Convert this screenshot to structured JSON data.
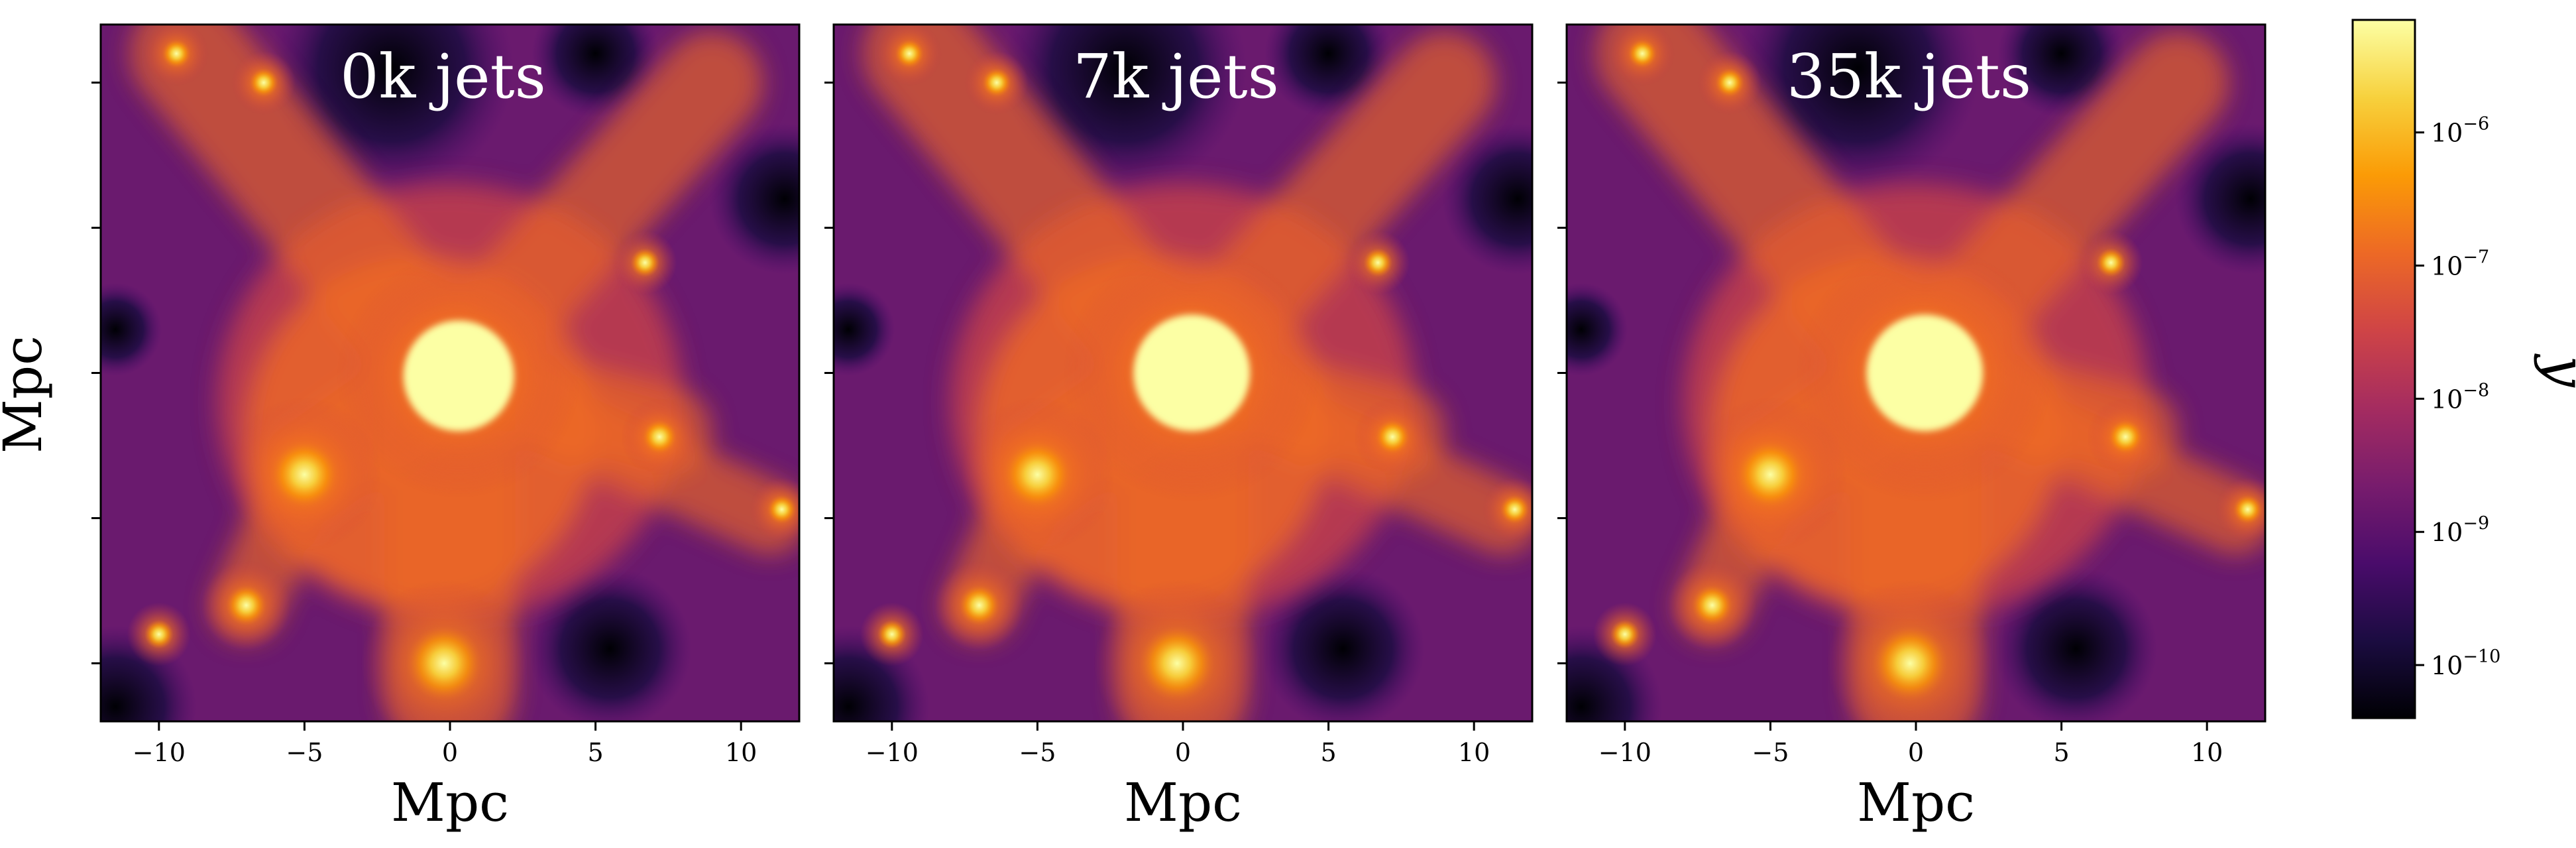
{
  "chart_data": [
    {
      "type": "heatmap",
      "title": "0k jets",
      "xlabel": "Mpc",
      "ylabel": "Mpc",
      "xlim": [
        -12,
        12
      ],
      "ylim": [
        -12,
        12
      ],
      "xticks": [
        -10,
        -5,
        0,
        5,
        10
      ],
      "xtick_labels": [
        "−10",
        "−5",
        "0",
        "5",
        "10"
      ],
      "yticks": [
        -10,
        -5,
        0,
        5,
        10
      ],
      "yticks_labeled": false,
      "colormap": "inferno",
      "log_scale": true,
      "features": [
        {
          "kind": "cluster",
          "x": 0.3,
          "y": -0.1,
          "r": 1.9
        },
        {
          "kind": "halo",
          "x": -5.0,
          "y": -3.5,
          "r": 1.2
        },
        {
          "kind": "halo",
          "x": -0.2,
          "y": -10.0,
          "r": 1.3
        },
        {
          "kind": "halo",
          "x": 7.2,
          "y": -2.2,
          "r": 0.6
        },
        {
          "kind": "halo",
          "x": 11.4,
          "y": -4.7,
          "r": 0.5
        },
        {
          "kind": "halo",
          "x": -7.0,
          "y": -8.0,
          "r": 0.7
        },
        {
          "kind": "halo",
          "x": -10.0,
          "y": -9.0,
          "r": 0.5
        },
        {
          "kind": "halo",
          "x": -6.4,
          "y": 10.0,
          "r": 0.5
        },
        {
          "kind": "halo",
          "x": -9.4,
          "y": 11.0,
          "r": 0.5
        },
        {
          "kind": "halo",
          "x": 6.7,
          "y": 3.8,
          "r": 0.5
        }
      ]
    },
    {
      "type": "heatmap",
      "title": "7k jets",
      "xlabel": "Mpc",
      "ylabel": "",
      "xlim": [
        -12,
        12
      ],
      "ylim": [
        -12,
        12
      ],
      "xticks": [
        -10,
        -5,
        0,
        5,
        10
      ],
      "xtick_labels": [
        "−10",
        "−5",
        "0",
        "5",
        "10"
      ],
      "yticks": [
        -10,
        -5,
        0,
        5,
        10
      ],
      "yticks_labeled": false,
      "colormap": "inferno",
      "log_scale": true,
      "features": [
        {
          "kind": "cluster",
          "x": 0.3,
          "y": 0.0,
          "r": 2.0
        },
        {
          "kind": "halo",
          "x": -5.0,
          "y": -3.5,
          "r": 1.2
        },
        {
          "kind": "halo",
          "x": -0.2,
          "y": -10.0,
          "r": 1.3
        },
        {
          "kind": "halo",
          "x": 7.2,
          "y": -2.2,
          "r": 0.6
        },
        {
          "kind": "halo",
          "x": 11.4,
          "y": -4.7,
          "r": 0.5
        },
        {
          "kind": "halo",
          "x": -7.0,
          "y": -8.0,
          "r": 0.7
        },
        {
          "kind": "halo",
          "x": -10.0,
          "y": -9.0,
          "r": 0.5
        },
        {
          "kind": "halo",
          "x": -6.4,
          "y": 10.0,
          "r": 0.5
        },
        {
          "kind": "halo",
          "x": -9.4,
          "y": 11.0,
          "r": 0.5
        },
        {
          "kind": "halo",
          "x": 6.7,
          "y": 3.8,
          "r": 0.5
        }
      ]
    },
    {
      "type": "heatmap",
      "title": "35k jets",
      "xlabel": "Mpc",
      "ylabel": "",
      "xlim": [
        -12,
        12
      ],
      "ylim": [
        -12,
        12
      ],
      "xticks": [
        -10,
        -5,
        0,
        5,
        10
      ],
      "xtick_labels": [
        "−10",
        "−5",
        "0",
        "5",
        "10"
      ],
      "yticks": [
        -10,
        -5,
        0,
        5,
        10
      ],
      "yticks_labeled": false,
      "colormap": "inferno",
      "log_scale": true,
      "features": [
        {
          "kind": "cluster",
          "x": 0.3,
          "y": 0.0,
          "r": 2.0
        },
        {
          "kind": "halo",
          "x": -5.0,
          "y": -3.5,
          "r": 1.2
        },
        {
          "kind": "halo",
          "x": -0.2,
          "y": -10.0,
          "r": 1.3
        },
        {
          "kind": "halo",
          "x": 7.2,
          "y": -2.2,
          "r": 0.6
        },
        {
          "kind": "halo",
          "x": 11.4,
          "y": -4.7,
          "r": 0.5
        },
        {
          "kind": "halo",
          "x": -7.0,
          "y": -8.0,
          "r": 0.7
        },
        {
          "kind": "halo",
          "x": -10.0,
          "y": -9.0,
          "r": 0.5
        },
        {
          "kind": "halo",
          "x": -6.4,
          "y": 10.0,
          "r": 0.5
        },
        {
          "kind": "halo",
          "x": -9.4,
          "y": 11.0,
          "r": 0.5
        },
        {
          "kind": "halo",
          "x": 6.7,
          "y": 3.8,
          "r": 0.5
        }
      ]
    }
  ],
  "colorbar": {
    "label": "y",
    "scale": "log",
    "range": [
      4e-11,
      7e-06
    ],
    "ticks": [
      {
        "value": 1e-10,
        "base": "10",
        "exp": "−10"
      },
      {
        "value": 1e-09,
        "base": "10",
        "exp": "−9"
      },
      {
        "value": 1e-08,
        "base": "10",
        "exp": "−8"
      },
      {
        "value": 1e-07,
        "base": "10",
        "exp": "−7"
      },
      {
        "value": 1e-06,
        "base": "10",
        "exp": "−6"
      }
    ],
    "colors": [
      "#000004",
      "#1b0c41",
      "#4a0c6b",
      "#781c6d",
      "#a52c60",
      "#cf4446",
      "#ed6925",
      "#fb9b06",
      "#f7d13d",
      "#fcffa4"
    ]
  }
}
